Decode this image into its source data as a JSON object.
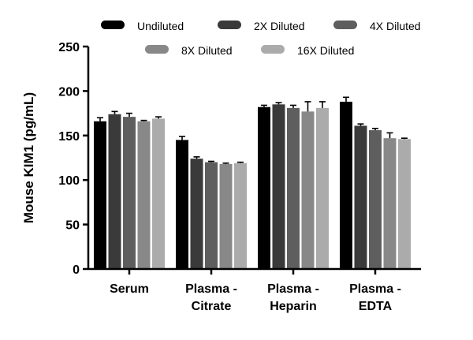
{
  "chart_data": {
    "type": "bar",
    "ylabel": "Mouse KIM1 (pg/mL)",
    "ylim": [
      0,
      250
    ],
    "yticks": [
      0,
      50,
      100,
      150,
      200,
      250
    ],
    "grid": false,
    "legend_position": "top",
    "categories": [
      [
        "Serum"
      ],
      [
        "Plasma -",
        "Citrate"
      ],
      [
        "Plasma -",
        "Heparin"
      ],
      [
        "Plasma -",
        "EDTA"
      ]
    ],
    "series": [
      {
        "name": "Undiluted",
        "color": "#000000",
        "values": [
          166,
          145,
          182,
          188
        ],
        "errors": [
          4,
          4,
          2,
          5
        ]
      },
      {
        "name": "2X Diluted",
        "color": "#3a3a3a",
        "values": [
          174,
          124,
          185,
          161
        ],
        "errors": [
          3,
          2,
          2,
          2
        ]
      },
      {
        "name": "4X Diluted",
        "color": "#5e5e5e",
        "values": [
          171,
          120,
          181,
          156
        ],
        "errors": [
          4,
          1,
          3,
          2
        ]
      },
      {
        "name": "8X Diluted",
        "color": "#888888",
        "values": [
          166,
          118,
          177,
          147
        ],
        "errors": [
          1,
          1,
          11,
          6
        ]
      },
      {
        "name": "16X Diluted",
        "color": "#ababab",
        "values": [
          169,
          119,
          181,
          146
        ],
        "errors": [
          2,
          1,
          7,
          1
        ]
      }
    ]
  }
}
